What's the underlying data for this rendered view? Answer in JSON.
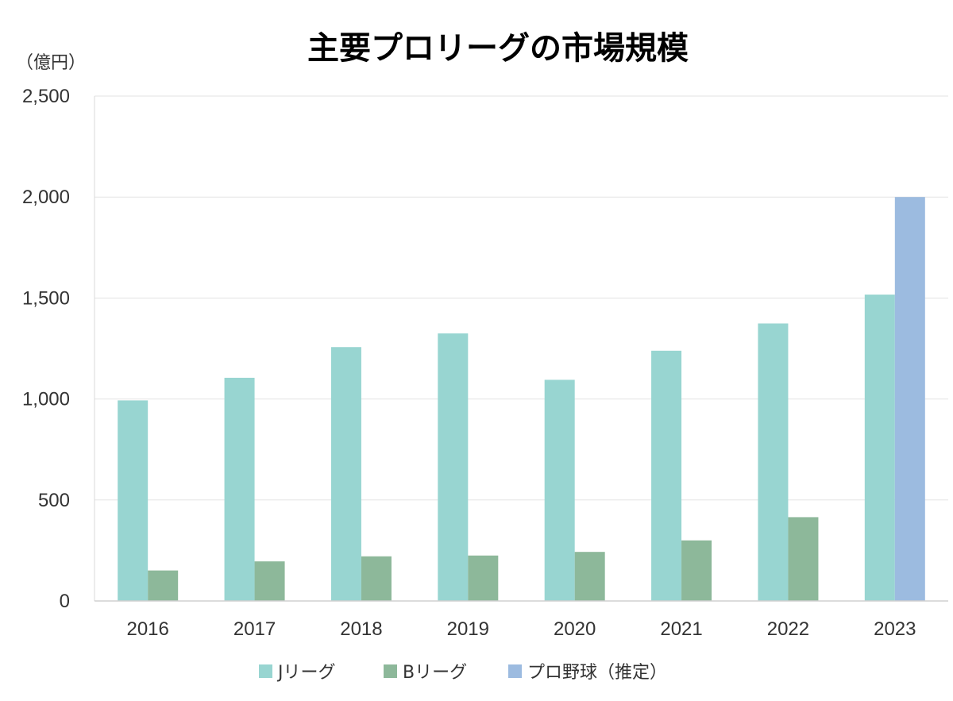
{
  "chart_data": {
    "type": "bar",
    "title": "主要プロリーグの市場規模",
    "unit_label": "（億円）",
    "categories": [
      "2016",
      "2017",
      "2018",
      "2019",
      "2020",
      "2021",
      "2022",
      "2023"
    ],
    "series": [
      {
        "name": "Jリーグ",
        "color": "#98d5d1",
        "values": [
          993,
          1105,
          1257,
          1325,
          1095,
          1239,
          1374,
          1517
        ]
      },
      {
        "name": "Bリーグ",
        "color": "#8db89a",
        "values": [
          151,
          196,
          221,
          225,
          243,
          300,
          415,
          null
        ]
      },
      {
        "name": "プロ野球（推定）",
        "color": "#9cbbe0",
        "values": [
          null,
          null,
          null,
          null,
          null,
          null,
          null,
          2000
        ]
      }
    ],
    "ylim": [
      0,
      2500
    ],
    "yticks": [
      0,
      500,
      1000,
      1500,
      2000,
      2500
    ],
    "ytick_labels": [
      "0",
      "500",
      "1,000",
      "1,500",
      "2,000",
      "2,500"
    ],
    "grid": true,
    "legend_position": "bottom"
  }
}
